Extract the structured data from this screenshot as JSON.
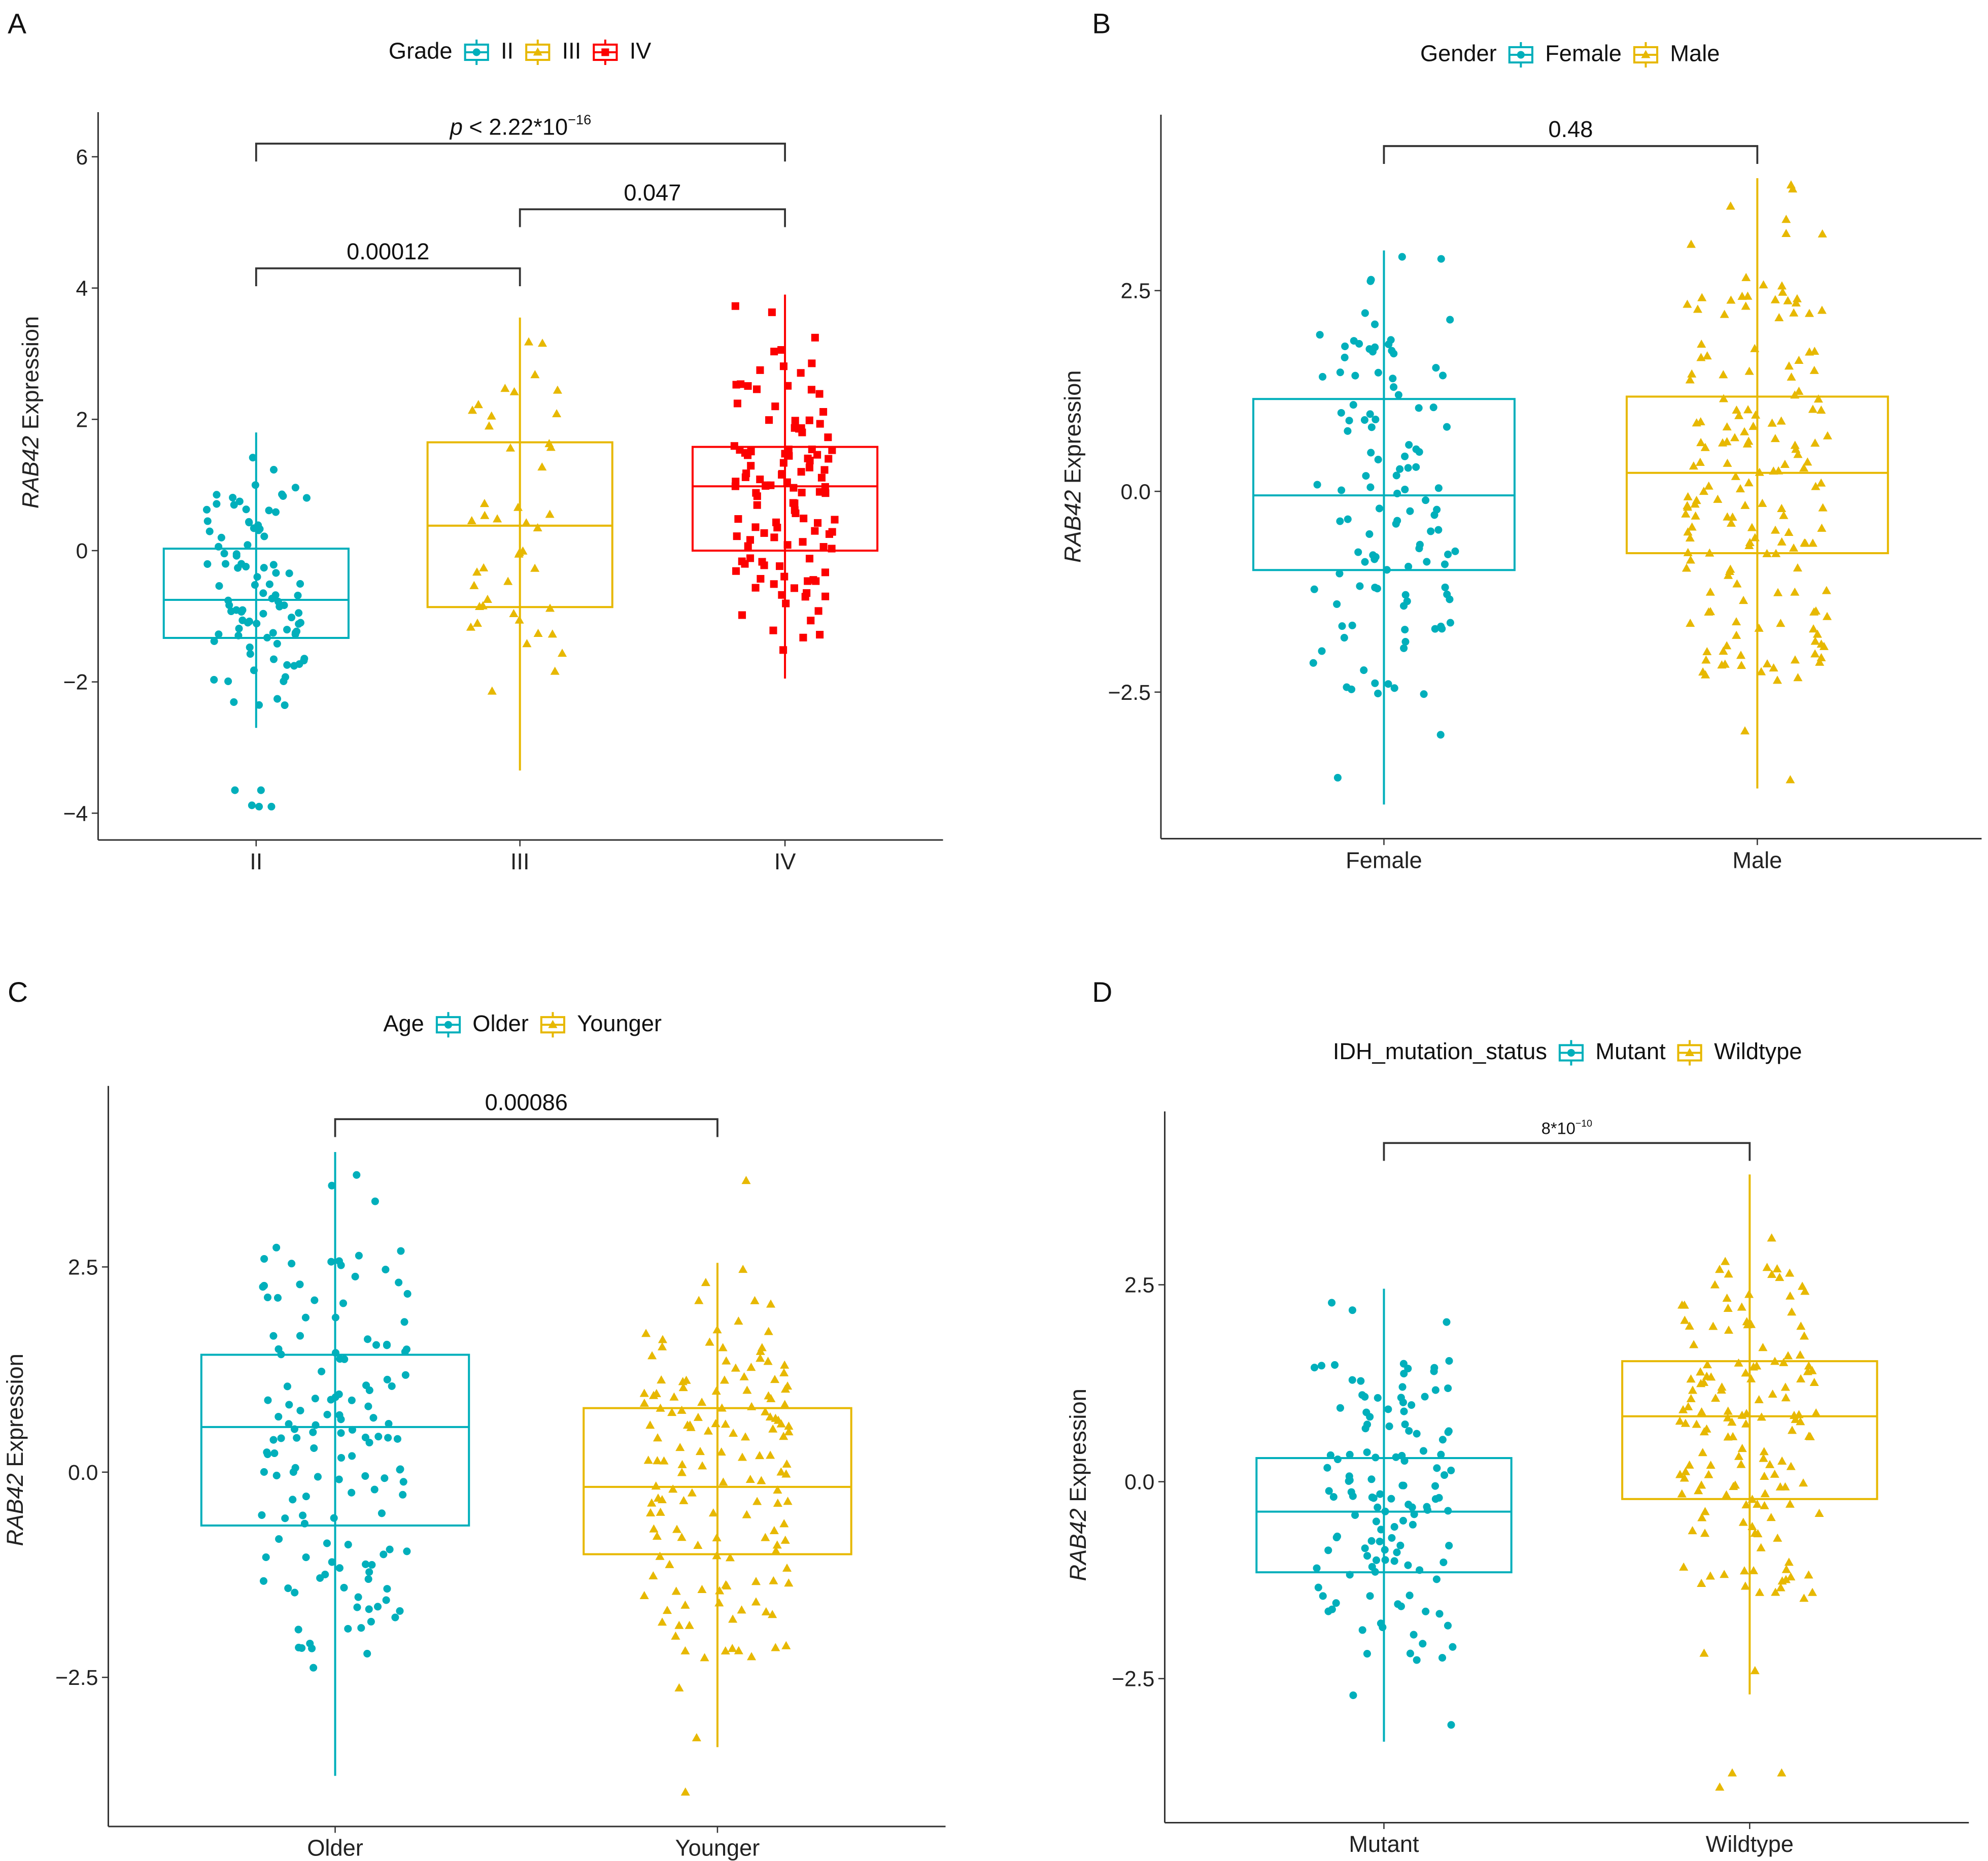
{
  "colors": {
    "teal": "#00AFBB",
    "gold": "#E7B800",
    "red": "#FC0000",
    "axis": "#333333"
  },
  "panel_labels": [
    "A",
    "B",
    "C",
    "D"
  ],
  "chart_data": [
    {
      "type": "box",
      "panel": "A",
      "legend_title": "Grade",
      "ylabel_italic": "RAB42",
      "ylabel": " Expression",
      "ylim": [
        -4.3,
        6.6
      ],
      "yticks": [
        {
          "v": 6,
          "label": "6"
        },
        {
          "v": 4,
          "label": "4"
        },
        {
          "v": 2,
          "label": "2"
        },
        {
          "v": 0,
          "label": "0"
        },
        {
          "v": -2,
          "label": "−2"
        },
        {
          "v": -4,
          "label": "−4"
        }
      ],
      "groups": [
        {
          "name": "II",
          "color": "#00AFBB",
          "shape": "circle",
          "n": 95,
          "min": -2.7,
          "q1": -1.33,
          "median": -0.75,
          "q3": 0.03,
          "max": 1.8,
          "outliers": [
            -3.65,
            -3.65,
            -3.9,
            -3.9,
            -3.88
          ]
        },
        {
          "name": "III",
          "color": "#E7B800",
          "shape": "triangle",
          "n": 45,
          "min": -3.35,
          "q1": -0.86,
          "median": 0.38,
          "q3": 1.65,
          "max": 3.55,
          "outliers": []
        },
        {
          "name": "IV",
          "color": "#FC0000",
          "shape": "square",
          "n": 120,
          "min": -1.95,
          "q1": 0.0,
          "median": 0.98,
          "q3": 1.58,
          "max": 3.9,
          "outliers": []
        }
      ],
      "comparisons": [
        {
          "from": 0,
          "to": 1,
          "y": 4.3,
          "label": "0.00012"
        },
        {
          "from": 1,
          "to": 2,
          "y": 5.2,
          "label": "0.047"
        },
        {
          "from": 0,
          "to": 2,
          "y": 6.2,
          "label_italic": "p",
          "label": " < 2.22*10",
          "sup": "−16"
        }
      ]
    },
    {
      "type": "box",
      "panel": "B",
      "legend_title": "Gender",
      "ylabel_italic": "RAB42",
      "ylabel": " Expression",
      "ylim": [
        -4.3,
        4.4
      ],
      "yticks": [
        {
          "v": 2.5,
          "label": "2.5"
        },
        {
          "v": 0,
          "label": "0.0"
        },
        {
          "v": -2.5,
          "label": "−2.5"
        }
      ],
      "groups": [
        {
          "name": "Female",
          "color": "#00AFBB",
          "shape": "circle",
          "n": 115,
          "min": -3.9,
          "q1": -0.98,
          "median": -0.05,
          "q3": 1.15,
          "max": 3.0,
          "outliers": []
        },
        {
          "name": "Male",
          "color": "#E7B800",
          "shape": "triangle",
          "n": 170,
          "min": -3.7,
          "q1": -0.77,
          "median": 0.23,
          "q3": 1.18,
          "max": 3.9,
          "outliers": []
        }
      ],
      "comparisons": [
        {
          "from": 0,
          "to": 1,
          "y": 4.3,
          "label": "0.48"
        }
      ]
    },
    {
      "type": "box",
      "panel": "C",
      "legend_title": "Age",
      "ylabel_italic": "RAB42",
      "ylabel": " Expression",
      "ylim": [
        -4.3,
        4.5
      ],
      "yticks": [
        {
          "v": 2.5,
          "label": "2.5"
        },
        {
          "v": 0,
          "label": "0.0"
        },
        {
          "v": -2.5,
          "label": "−2.5"
        }
      ],
      "groups": [
        {
          "name": "Older",
          "color": "#00AFBB",
          "shape": "circle",
          "n": 140,
          "min": -3.7,
          "q1": -0.65,
          "median": 0.55,
          "q3": 1.43,
          "max": 3.9,
          "outliers": []
        },
        {
          "name": "Younger",
          "color": "#E7B800",
          "shape": "triangle",
          "n": 150,
          "min": -3.35,
          "q1": -1.0,
          "median": -0.18,
          "q3": 0.78,
          "max": 2.55,
          "outliers": [
            -3.9,
            3.55
          ]
        }
      ],
      "comparisons": [
        {
          "from": 0,
          "to": 1,
          "y": 4.3,
          "label": "0.00086"
        }
      ]
    },
    {
      "type": "box",
      "panel": "D",
      "legend_title": "IDH_mutation_status",
      "ylabel_italic": "RAB42",
      "ylabel": " Expression",
      "ylim": [
        -4.3,
        4.7
      ],
      "yticks": [
        {
          "v": 2.5,
          "label": "2.5"
        },
        {
          "v": 0,
          "label": "0.0"
        },
        {
          "v": -2.5,
          "label": "−2.5"
        }
      ],
      "groups": [
        {
          "name": "Mutant",
          "color": "#00AFBB",
          "shape": "circle",
          "n": 130,
          "min": -3.3,
          "q1": -1.15,
          "median": -0.38,
          "q3": 0.3,
          "max": 2.45,
          "outliers": []
        },
        {
          "name": "Wildtype",
          "color": "#E7B800",
          "shape": "triangle",
          "n": 150,
          "min": -2.7,
          "q1": -0.22,
          "median": 0.83,
          "q3": 1.53,
          "max": 3.9,
          "outliers": [
            -3.7,
            -3.7,
            -3.88
          ]
        }
      ],
      "comparisons": [
        {
          "from": 0,
          "to": 1,
          "y": 4.3,
          "label": "8*10",
          "sup": "−10",
          "small": true
        }
      ]
    }
  ]
}
